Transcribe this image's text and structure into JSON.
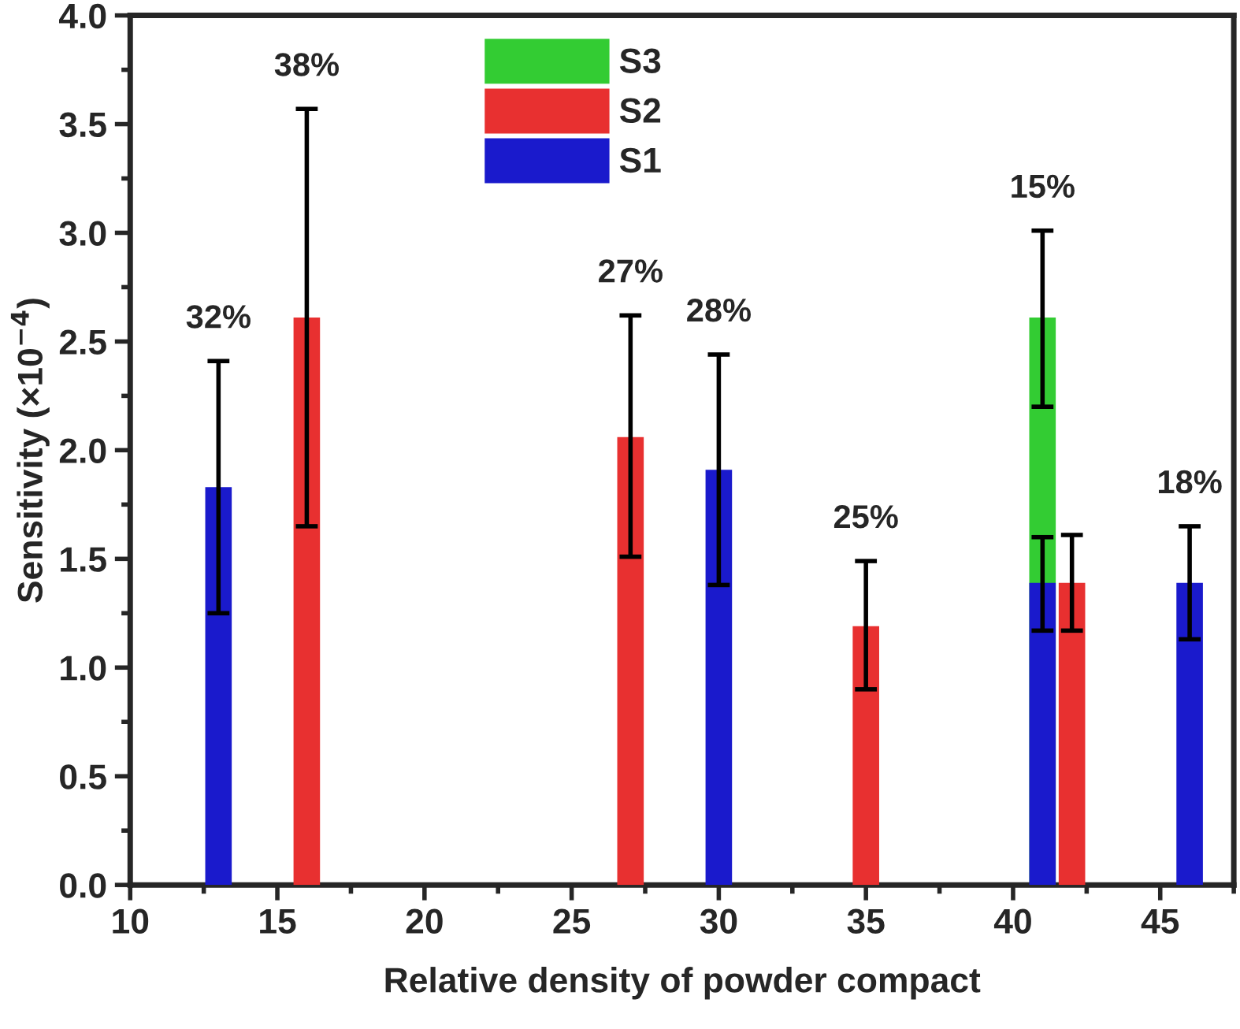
{
  "chart_data": {
    "type": "bar",
    "xlabel": "Relative density of powder compact",
    "ylabel": "Sensitivity (×10$^{−4}$)",
    "xlim": [
      10,
      47.5
    ],
    "xticks": [
      10,
      15,
      20,
      25,
      30,
      35,
      40,
      45
    ],
    "ylim": [
      0,
      4
    ],
    "yticks": [
      {
        "value": 0,
        "label": "0.0"
      },
      {
        "value": 0.5,
        "label": "0.5"
      },
      {
        "value": 1,
        "label": "1.0"
      },
      {
        "value": 1.5,
        "label": "1.5"
      },
      {
        "value": 2,
        "label": "2.0"
      },
      {
        "value": 2.5,
        "label": "2.5"
      },
      {
        "value": 3,
        "label": "3.0"
      },
      {
        "value": 3.5,
        "label": "3.5"
      },
      {
        "value": 4,
        "label": "4.0"
      }
    ],
    "legend": "top left",
    "grid": false,
    "series": [
      {
        "name": "S3",
        "color": "#33cc33",
        "x": [
          41
        ],
        "values": [
          2.61
        ],
        "errors": [
          [
            2.2,
            3.01
          ]
        ]
      },
      {
        "name": "S2",
        "color": "#e83030",
        "x": [
          16,
          27,
          35,
          42
        ],
        "values": [
          2.61,
          2.06,
          1.19,
          1.39
        ],
        "errors": [
          [
            1.65,
            3.57
          ],
          [
            1.51,
            2.62
          ],
          [
            0.9,
            1.49
          ],
          [
            1.17,
            1.61
          ]
        ]
      },
      {
        "name": "S1",
        "color": "#1a1acc",
        "x": [
          13,
          30,
          41,
          46
        ],
        "values": [
          1.83,
          1.91,
          1.39,
          1.39
        ],
        "errors": [
          [
            1.25,
            2.41
          ],
          [
            1.38,
            2.44
          ],
          [
            1.17,
            1.6
          ],
          [
            1.13,
            1.65
          ]
        ]
      }
    ],
    "annotations": [
      {
        "text": "32%",
        "x": 13,
        "y": 2.41
      },
      {
        "text": "38%",
        "x": 16,
        "y": 3.57
      },
      {
        "text": "27%",
        "x": 27,
        "y": 2.62
      },
      {
        "text": "28%",
        "x": 30,
        "y": 2.44
      },
      {
        "text": "25%",
        "x": 35,
        "y": 1.49
      },
      {
        "text": "15%",
        "x": 41,
        "y": 3.01
      },
      {
        "text": "18%",
        "x": 46,
        "y": 1.65
      }
    ]
  }
}
